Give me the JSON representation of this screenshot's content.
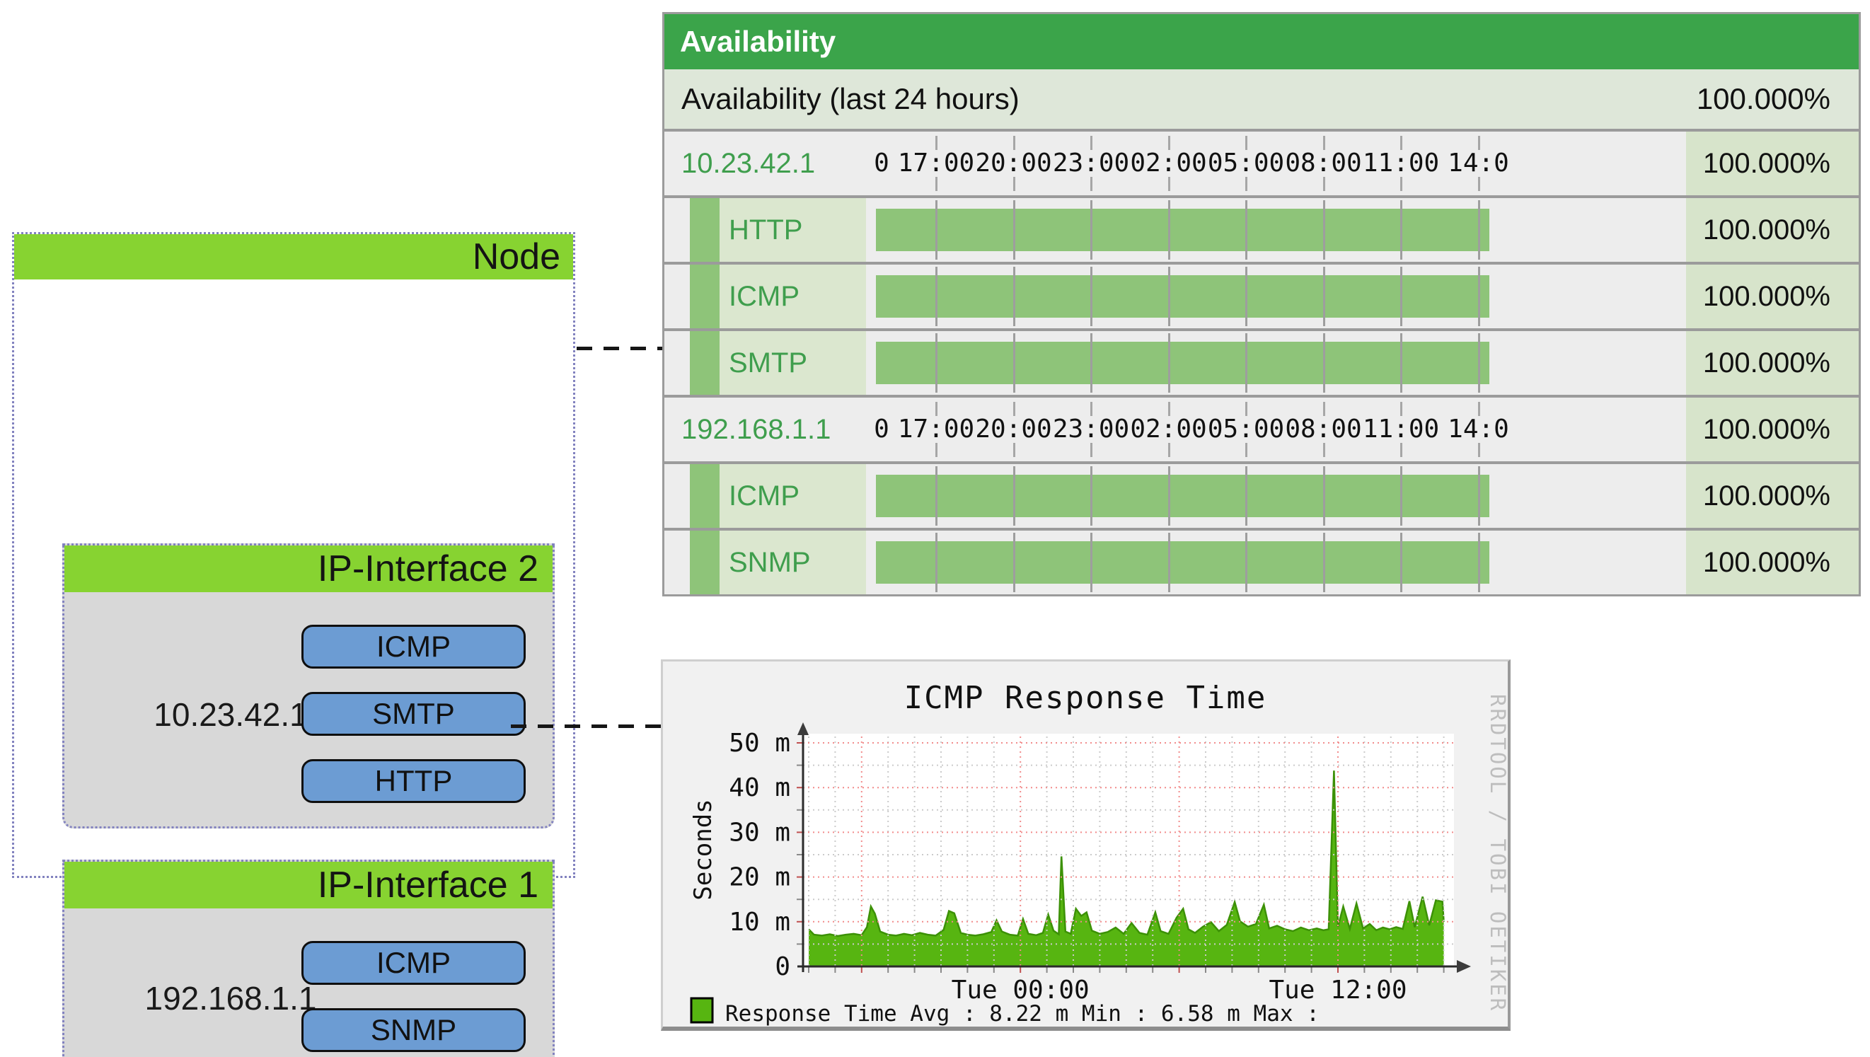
{
  "colors": {
    "table_header_bg": "#3ba44a",
    "summary_row_bg": "#dee7d9",
    "row_bg": "#ededed",
    "right_cell_bg": "#d7e4cb",
    "label_cell_bg": "#dbe7cf",
    "bar_green": "#8ec479",
    "link_green": "#3f9e4d",
    "separator_gray": "#9b9b9b",
    "diagram_green": "#87d331",
    "diagram_body_gray": "#d8d8d8",
    "button_blue": "#6c9cd3",
    "chart_area_green": "#57b511",
    "chart_line_green": "#3c9106",
    "grid_major_red": "#f28c8c",
    "grid_minor_gray": "#cbcbcb",
    "watermark_gray": "#bdbdbd"
  },
  "diagram": {
    "node_title": "Node",
    "interfaces": [
      {
        "title": "IP-Interface 2",
        "ip": "10.23.42.1",
        "services": [
          "ICMP",
          "SMTP",
          "HTTP"
        ]
      },
      {
        "title": "IP-Interface 1",
        "ip": "192.168.1.1",
        "services": [
          "ICMP",
          "SNMP"
        ]
      }
    ]
  },
  "availability_table": {
    "title": "Availability",
    "summary": {
      "label": "Availability (last 24 hours)",
      "value": "100.000%"
    },
    "time_axis_labels": [
      "0",
      "17:00",
      "20:00",
      "23:00",
      "02:00",
      "05:00",
      "08:00",
      "11:00",
      "14:0"
    ],
    "groups": [
      {
        "ip": "10.23.42.1",
        "value": "100.000%",
        "services": [
          {
            "name": "HTTP",
            "value": "100.000%"
          },
          {
            "name": "ICMP",
            "value": "100.000%"
          },
          {
            "name": "SMTP",
            "value": "100.000%"
          }
        ]
      },
      {
        "ip": "192.168.1.1",
        "value": "100.000%",
        "services": [
          {
            "name": "ICMP",
            "value": "100.000%"
          },
          {
            "name": "SNMP",
            "value": "100.000%"
          }
        ]
      }
    ]
  },
  "chart_data": {
    "type": "area",
    "title": "ICMP Response Time",
    "ylabel": "Seconds",
    "xlabel": "",
    "ylim": [
      0,
      52
    ],
    "y_unit": "m (milliseconds)",
    "y_ticks": [
      {
        "value": 50,
        "label": "50 m"
      },
      {
        "value": 40,
        "label": "40 m"
      },
      {
        "value": 30,
        "label": "30 m"
      },
      {
        "value": 20,
        "label": "20 m"
      },
      {
        "value": 10,
        "label": "10 m"
      },
      {
        "value": 0,
        "label": "0"
      }
    ],
    "x_hours_range": 24,
    "x_ticks": [
      {
        "hour": 8,
        "label": "Tue 00:00"
      },
      {
        "hour": 20,
        "label": "Tue 12:00"
      }
    ],
    "grid": true,
    "legend_position": "bottom",
    "watermark": "RRDTOOL / TOBI OETIKER",
    "legend": {
      "series_label": "Response Time",
      "avg_label": "Avg  :",
      "avg_value": "8.22 m",
      "min_label": "Min  :",
      "min_value": "6.58 m",
      "max_label": "Max  :",
      "max_value": ""
    },
    "series": [
      {
        "name": "Response Time",
        "color": "#57b511",
        "points": [
          [
            0,
            8.3
          ],
          [
            0.2,
            7.1
          ],
          [
            0.5,
            6.9
          ],
          [
            0.8,
            7.2
          ],
          [
            1.1,
            6.8
          ],
          [
            1.4,
            7.1
          ],
          [
            1.7,
            7.3
          ],
          [
            2.0,
            7.0
          ],
          [
            2.2,
            8.8
          ],
          [
            2.35,
            13.4
          ],
          [
            2.5,
            11.8
          ],
          [
            2.7,
            7.8
          ],
          [
            3.0,
            7.1
          ],
          [
            3.3,
            6.9
          ],
          [
            3.6,
            7.3
          ],
          [
            3.9,
            7.0
          ],
          [
            4.2,
            7.5
          ],
          [
            4.5,
            7.1
          ],
          [
            4.8,
            6.9
          ],
          [
            5.1,
            8.2
          ],
          [
            5.3,
            12.4
          ],
          [
            5.5,
            11.9
          ],
          [
            5.75,
            7.5
          ],
          [
            6.0,
            7.1
          ],
          [
            6.3,
            6.9
          ],
          [
            6.6,
            7.2
          ],
          [
            6.9,
            7.7
          ],
          [
            7.1,
            10.3
          ],
          [
            7.3,
            7.8
          ],
          [
            7.6,
            7.1
          ],
          [
            7.9,
            6.9
          ],
          [
            8.1,
            10.6
          ],
          [
            8.3,
            7.3
          ],
          [
            8.6,
            7.0
          ],
          [
            8.85,
            7.5
          ],
          [
            9.05,
            11.6
          ],
          [
            9.25,
            8.0
          ],
          [
            9.45,
            7.2
          ],
          [
            9.55,
            24.6
          ],
          [
            9.7,
            7.8
          ],
          [
            9.9,
            7.3
          ],
          [
            10.1,
            12.9
          ],
          [
            10.3,
            11.3
          ],
          [
            10.5,
            12.1
          ],
          [
            10.7,
            8.0
          ],
          [
            11.0,
            7.3
          ],
          [
            11.3,
            7.7
          ],
          [
            11.6,
            8.7
          ],
          [
            11.9,
            7.3
          ],
          [
            12.2,
            9.7
          ],
          [
            12.5,
            7.5
          ],
          [
            12.8,
            7.1
          ],
          [
            13.1,
            12.1
          ],
          [
            13.3,
            7.9
          ],
          [
            13.6,
            7.3
          ],
          [
            13.9,
            10.9
          ],
          [
            14.15,
            12.9
          ],
          [
            14.35,
            8.3
          ],
          [
            14.6,
            7.5
          ],
          [
            14.9,
            8.9
          ],
          [
            15.2,
            9.9
          ],
          [
            15.5,
            7.9
          ],
          [
            15.8,
            9.3
          ],
          [
            16.1,
            14.4
          ],
          [
            16.3,
            10.1
          ],
          [
            16.6,
            8.9
          ],
          [
            16.9,
            9.5
          ],
          [
            17.2,
            13.8
          ],
          [
            17.4,
            8.5
          ],
          [
            17.7,
            9.1
          ],
          [
            18.0,
            8.3
          ],
          [
            18.3,
            7.9
          ],
          [
            18.6,
            8.7
          ],
          [
            18.9,
            8.1
          ],
          [
            19.2,
            8.5
          ],
          [
            19.45,
            8.1
          ],
          [
            19.65,
            8.3
          ],
          [
            19.85,
            43.8
          ],
          [
            20.0,
            8.9
          ],
          [
            20.2,
            13.4
          ],
          [
            20.45,
            8.4
          ],
          [
            20.7,
            14.1
          ],
          [
            20.95,
            8.5
          ],
          [
            21.2,
            9.5
          ],
          [
            21.45,
            8.1
          ],
          [
            21.7,
            8.7
          ],
          [
            21.95,
            8.3
          ],
          [
            22.2,
            8.8
          ],
          [
            22.45,
            8.4
          ],
          [
            22.7,
            14.6
          ],
          [
            22.9,
            8.8
          ],
          [
            23.2,
            15.6
          ],
          [
            23.45,
            9.2
          ],
          [
            23.7,
            14.8
          ],
          [
            23.95,
            14.5
          ],
          [
            24.0,
            10.0
          ]
        ]
      }
    ]
  }
}
